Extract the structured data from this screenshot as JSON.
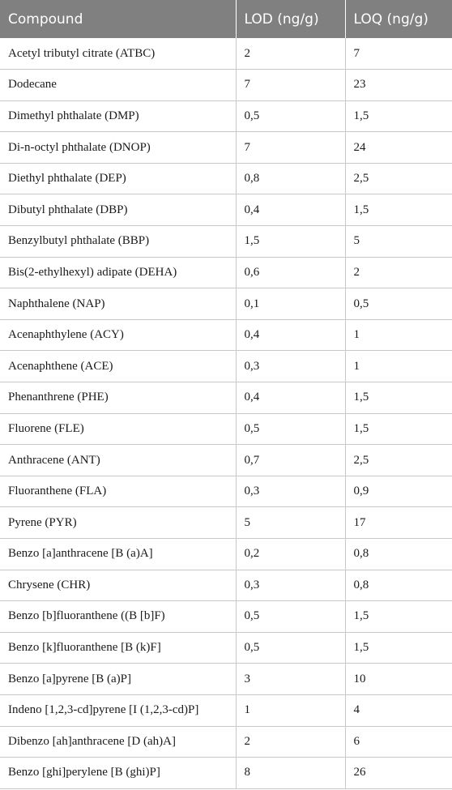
{
  "table": {
    "headers": [
      "Compound",
      "LOD (ng/g)",
      "LOQ (ng/g)"
    ],
    "rows": [
      [
        "Acetyl tributyl citrate (ATBC)",
        "2",
        "7"
      ],
      [
        "Dodecane",
        "7",
        "23"
      ],
      [
        "Dimethyl phthalate (DMP)",
        "0,5",
        "1,5"
      ],
      [
        "Di-n-octyl phthalate (DNOP)",
        "7",
        "24"
      ],
      [
        "Diethyl phthalate (DEP)",
        "0,8",
        "2,5"
      ],
      [
        "Dibutyl phthalate (DBP)",
        "0,4",
        "1,5"
      ],
      [
        "Benzylbutyl phthalate (BBP)",
        "1,5",
        "5"
      ],
      [
        "Bis(2-ethylhexyl) adipate (DEHA)",
        "0,6",
        "2"
      ],
      [
        "Naphthalene (NAP)",
        "0,1",
        "0,5"
      ],
      [
        "Acenaphthylene (ACY)",
        "0,4",
        "1"
      ],
      [
        "Acenaphthene (ACE)",
        "0,3",
        "1"
      ],
      [
        "Phenanthrene (PHE)",
        "0,4",
        "1,5"
      ],
      [
        "Fluorene (FLE)",
        "0,5",
        "1,5"
      ],
      [
        "Anthracene (ANT)",
        "0,7",
        "2,5"
      ],
      [
        "Fluoranthene (FLA)",
        "0,3",
        "0,9"
      ],
      [
        "Pyrene (PYR)",
        "5",
        "17"
      ],
      [
        "Benzo [a]anthracene [B (a)A]",
        "0,2",
        "0,8"
      ],
      [
        "Chrysene (CHR)",
        "0,3",
        "0,8"
      ],
      [
        "Benzo [b]fluoranthene ((B [b]F)",
        "0,5",
        "1,5"
      ],
      [
        "Benzo [k]fluoranthene [B (k)F]",
        "0,5",
        "1,5"
      ],
      [
        "Benzo [a]pyrene [B (a)P]",
        "3",
        "10"
      ],
      [
        "Indeno [1,2,3-cd]pyrene [I (1,2,3-cd)P]",
        "1",
        "4"
      ],
      [
        "Dibenzo [ah]anthracene [D (ah)A]",
        "2",
        "6"
      ],
      [
        "Benzo [ghi]perylene [B (ghi)P]",
        "8",
        "26"
      ]
    ]
  }
}
